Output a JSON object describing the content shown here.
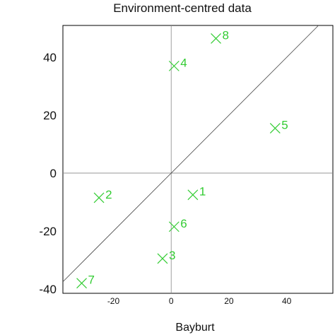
{
  "chart_data": {
    "type": "scatter",
    "title": "Environment-centred data",
    "xlabel": "Bayburt",
    "ylabel": "",
    "xlim": [
      -37.5,
      56
    ],
    "ylim": [
      -41.5,
      51
    ],
    "x_ticks": [
      -20,
      0,
      20,
      40
    ],
    "y_ticks": [
      -40,
      -20,
      0,
      20,
      40
    ],
    "marker": "x",
    "color": "#33cc33",
    "reference_lines": [
      "x = 0",
      "y = 0",
      "y = x"
    ],
    "points": [
      {
        "label": "1",
        "x": 7.5,
        "y": -7.5
      },
      {
        "label": "2",
        "x": -25,
        "y": -8.5
      },
      {
        "label": "3",
        "x": -3,
        "y": -29.5
      },
      {
        "label": "4",
        "x": 1,
        "y": 37
      },
      {
        "label": "5",
        "x": 36,
        "y": 15.5
      },
      {
        "label": "6",
        "x": 1,
        "y": -18.5
      },
      {
        "label": "7",
        "x": -31,
        "y": -38
      },
      {
        "label": "8",
        "x": 15.5,
        "y": 46.5
      }
    ]
  }
}
